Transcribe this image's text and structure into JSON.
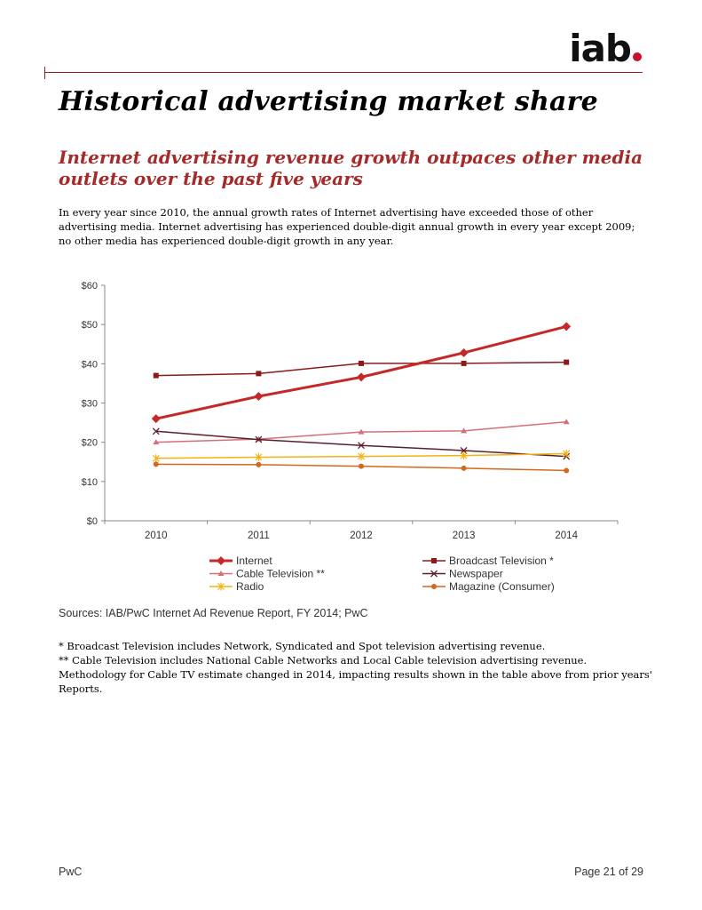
{
  "header": {
    "logo_text": "iab",
    "title": "Historical advertising market share",
    "subtitle": "Internet advertising revenue growth outpaces other media outlets over the past five years",
    "intro": "In every year since 2010, the annual growth rates of Internet advertising have exceeded those of other advertising media. Internet advertising has experienced double-digit annual growth in every year except 2009; no other media has experienced double-digit growth in any year."
  },
  "chart_data": {
    "type": "line",
    "categories": [
      "2010",
      "2011",
      "2012",
      "2013",
      "2014"
    ],
    "y_ticks": [
      "$0",
      "$10",
      "$20",
      "$30",
      "$40",
      "$50",
      "$60"
    ],
    "ylim": [
      0,
      60
    ],
    "grid": false,
    "legend_position": "bottom",
    "series": [
      {
        "name": "Internet",
        "values": [
          26.0,
          31.7,
          36.6,
          42.8,
          49.5
        ],
        "color": "#c62828",
        "marker": "diamond",
        "bold": true
      },
      {
        "name": "Broadcast Television *",
        "values": [
          37.0,
          37.5,
          40.1,
          40.1,
          40.4
        ],
        "color": "#8b1a1a",
        "marker": "square",
        "bold": false
      },
      {
        "name": "Cable Television **",
        "values": [
          20.0,
          20.8,
          22.6,
          22.9,
          25.2
        ],
        "color": "#d4707a",
        "marker": "triangle",
        "bold": false
      },
      {
        "name": "Newspaper",
        "values": [
          22.8,
          20.7,
          19.2,
          17.9,
          16.4
        ],
        "color": "#5a1f2b",
        "marker": "x",
        "bold": false
      },
      {
        "name": "Radio",
        "values": [
          15.9,
          16.2,
          16.4,
          16.6,
          17.1
        ],
        "color": "#f2b416",
        "marker": "star",
        "bold": false
      },
      {
        "name": "Magazine (Consumer)",
        "values": [
          14.4,
          14.3,
          13.9,
          13.4,
          12.8
        ],
        "color": "#d2691e",
        "marker": "circle",
        "bold": false
      }
    ]
  },
  "sources": "Sources: IAB/PwC Internet Ad Revenue Report, FY 2014; PwC",
  "notes": [
    "*   Broadcast Television includes Network, Syndicated and Spot television advertising revenue.",
    "**  Cable Television includes National Cable Networks and Local Cable television advertising revenue. Methodology for Cable TV estimate changed in 2014, impacting results shown in the table above from prior years' Reports."
  ],
  "footer": {
    "left": "PwC",
    "right": "Page 21 of 29"
  }
}
